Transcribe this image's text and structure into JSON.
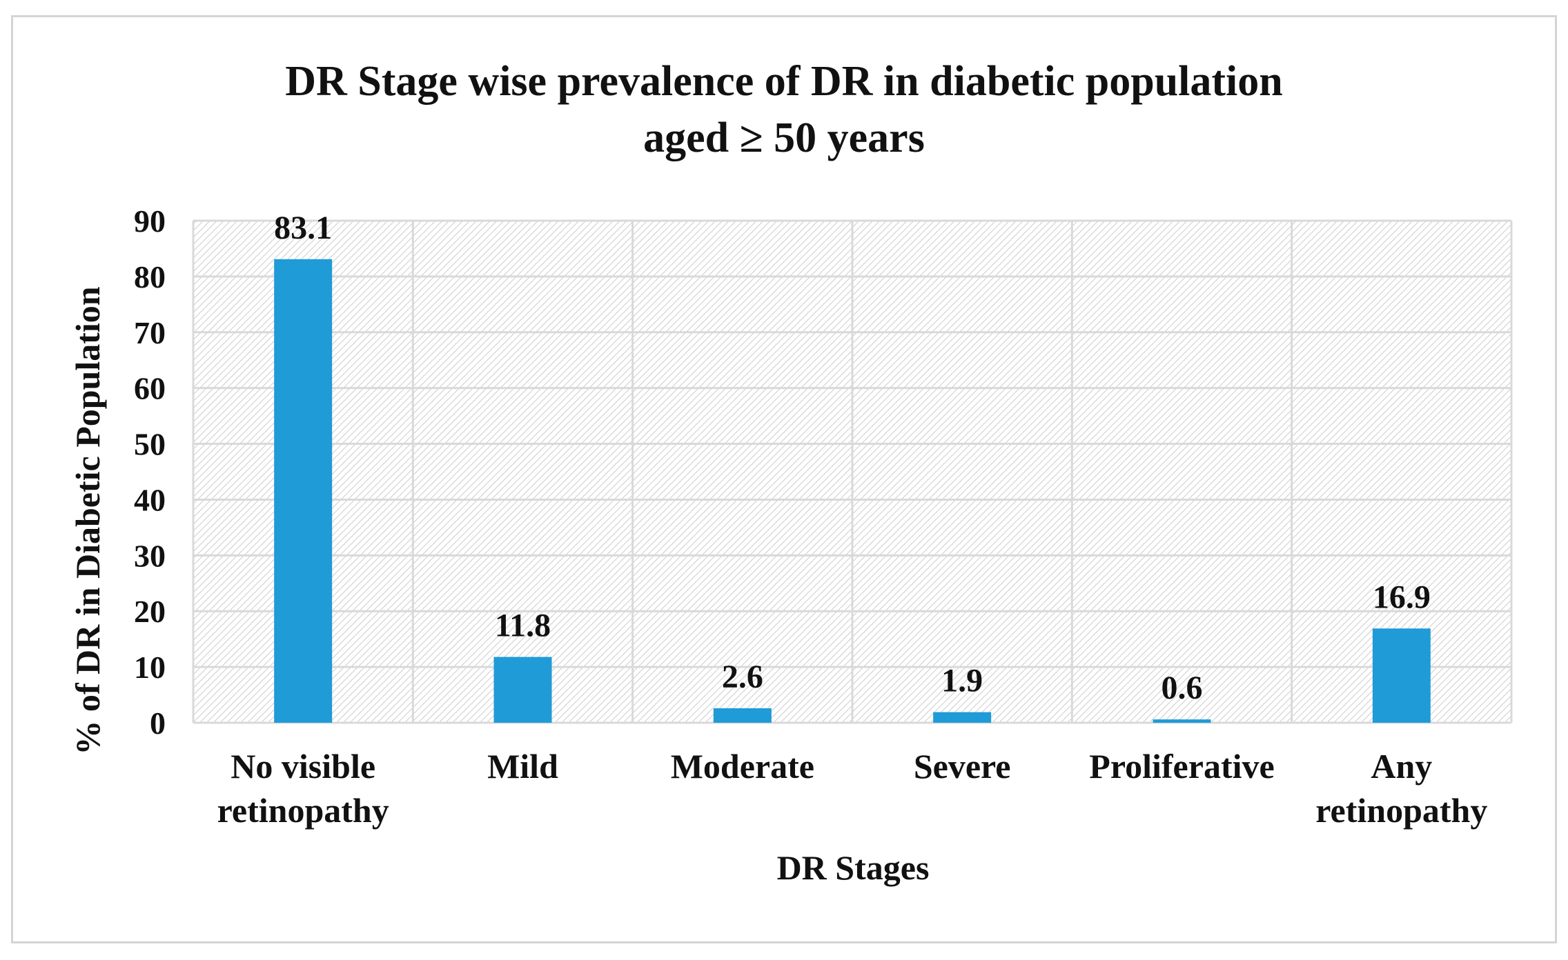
{
  "chart_data": {
    "type": "bar",
    "title_lines": [
      "DR Stage wise prevalence of DR in diabetic population",
      "aged ≥ 50 years"
    ],
    "xlabel": "DR Stages",
    "ylabel": "% of DR in Diabetic Population",
    "categories": [
      [
        "No visible",
        "retinopathy"
      ],
      [
        "Mild"
      ],
      [
        "Moderate"
      ],
      [
        "Severe"
      ],
      [
        "Proliferative"
      ],
      [
        "Any",
        "retinopathy"
      ]
    ],
    "values": [
      83.1,
      11.8,
      2.6,
      1.9,
      0.6,
      16.9
    ],
    "data_labels": [
      "83.1",
      "11.8",
      "2.6",
      "1.9",
      "0.6",
      "16.9"
    ],
    "ylim": [
      0,
      90
    ],
    "yticks": [
      0,
      10,
      20,
      30,
      40,
      50,
      60,
      70,
      80,
      90
    ],
    "grid": true,
    "legend": "none",
    "colors": {
      "bar": "#1f9bd7",
      "grid": "#d9d9d9",
      "hatch": "#d0d0d0",
      "text": "#111111"
    }
  }
}
